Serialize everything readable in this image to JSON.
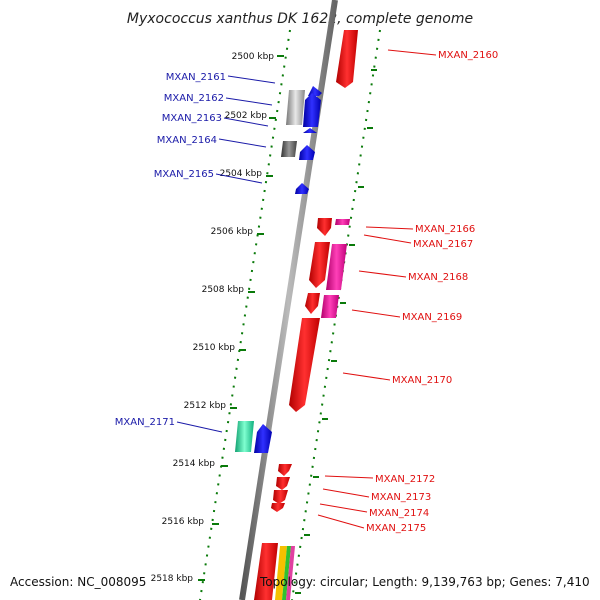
{
  "title": "Myxococcus xanthus DK 1622, complete genome",
  "footer": {
    "accession": "Accession: NC_008095",
    "topology": "Topology: circular; Length: 9,139,763 bp; Genes: 7,410"
  },
  "ticks": [
    "2500 kbp",
    "2502 kbp",
    "2504 kbp",
    "2506 kbp",
    "2508 kbp",
    "2510 kbp",
    "2512 kbp",
    "2514 kbp",
    "2516 kbp",
    "2518 kbp"
  ],
  "genes_left": [
    "MXAN_2161",
    "MXAN_2162",
    "MXAN_2163",
    "MXAN_2164",
    "MXAN_2165",
    "MXAN_2171"
  ],
  "genes_right": [
    "MXAN_2160",
    "MXAN_2166",
    "MXAN_2167",
    "MXAN_2168",
    "MXAN_2169",
    "MXAN_2170",
    "MXAN_2172",
    "MXAN_2173",
    "MXAN_2174",
    "MXAN_2175"
  ],
  "colors": {
    "forward_strand": "#e00000",
    "forward_alt": "#e0109a",
    "reverse_strand": "#0a0ae6",
    "reverse_alt": "#20e0a0",
    "gray": "#aaaaaa",
    "dark_gray": "#666666",
    "tick": "#0a7a0a",
    "backbone": "#888888"
  }
}
